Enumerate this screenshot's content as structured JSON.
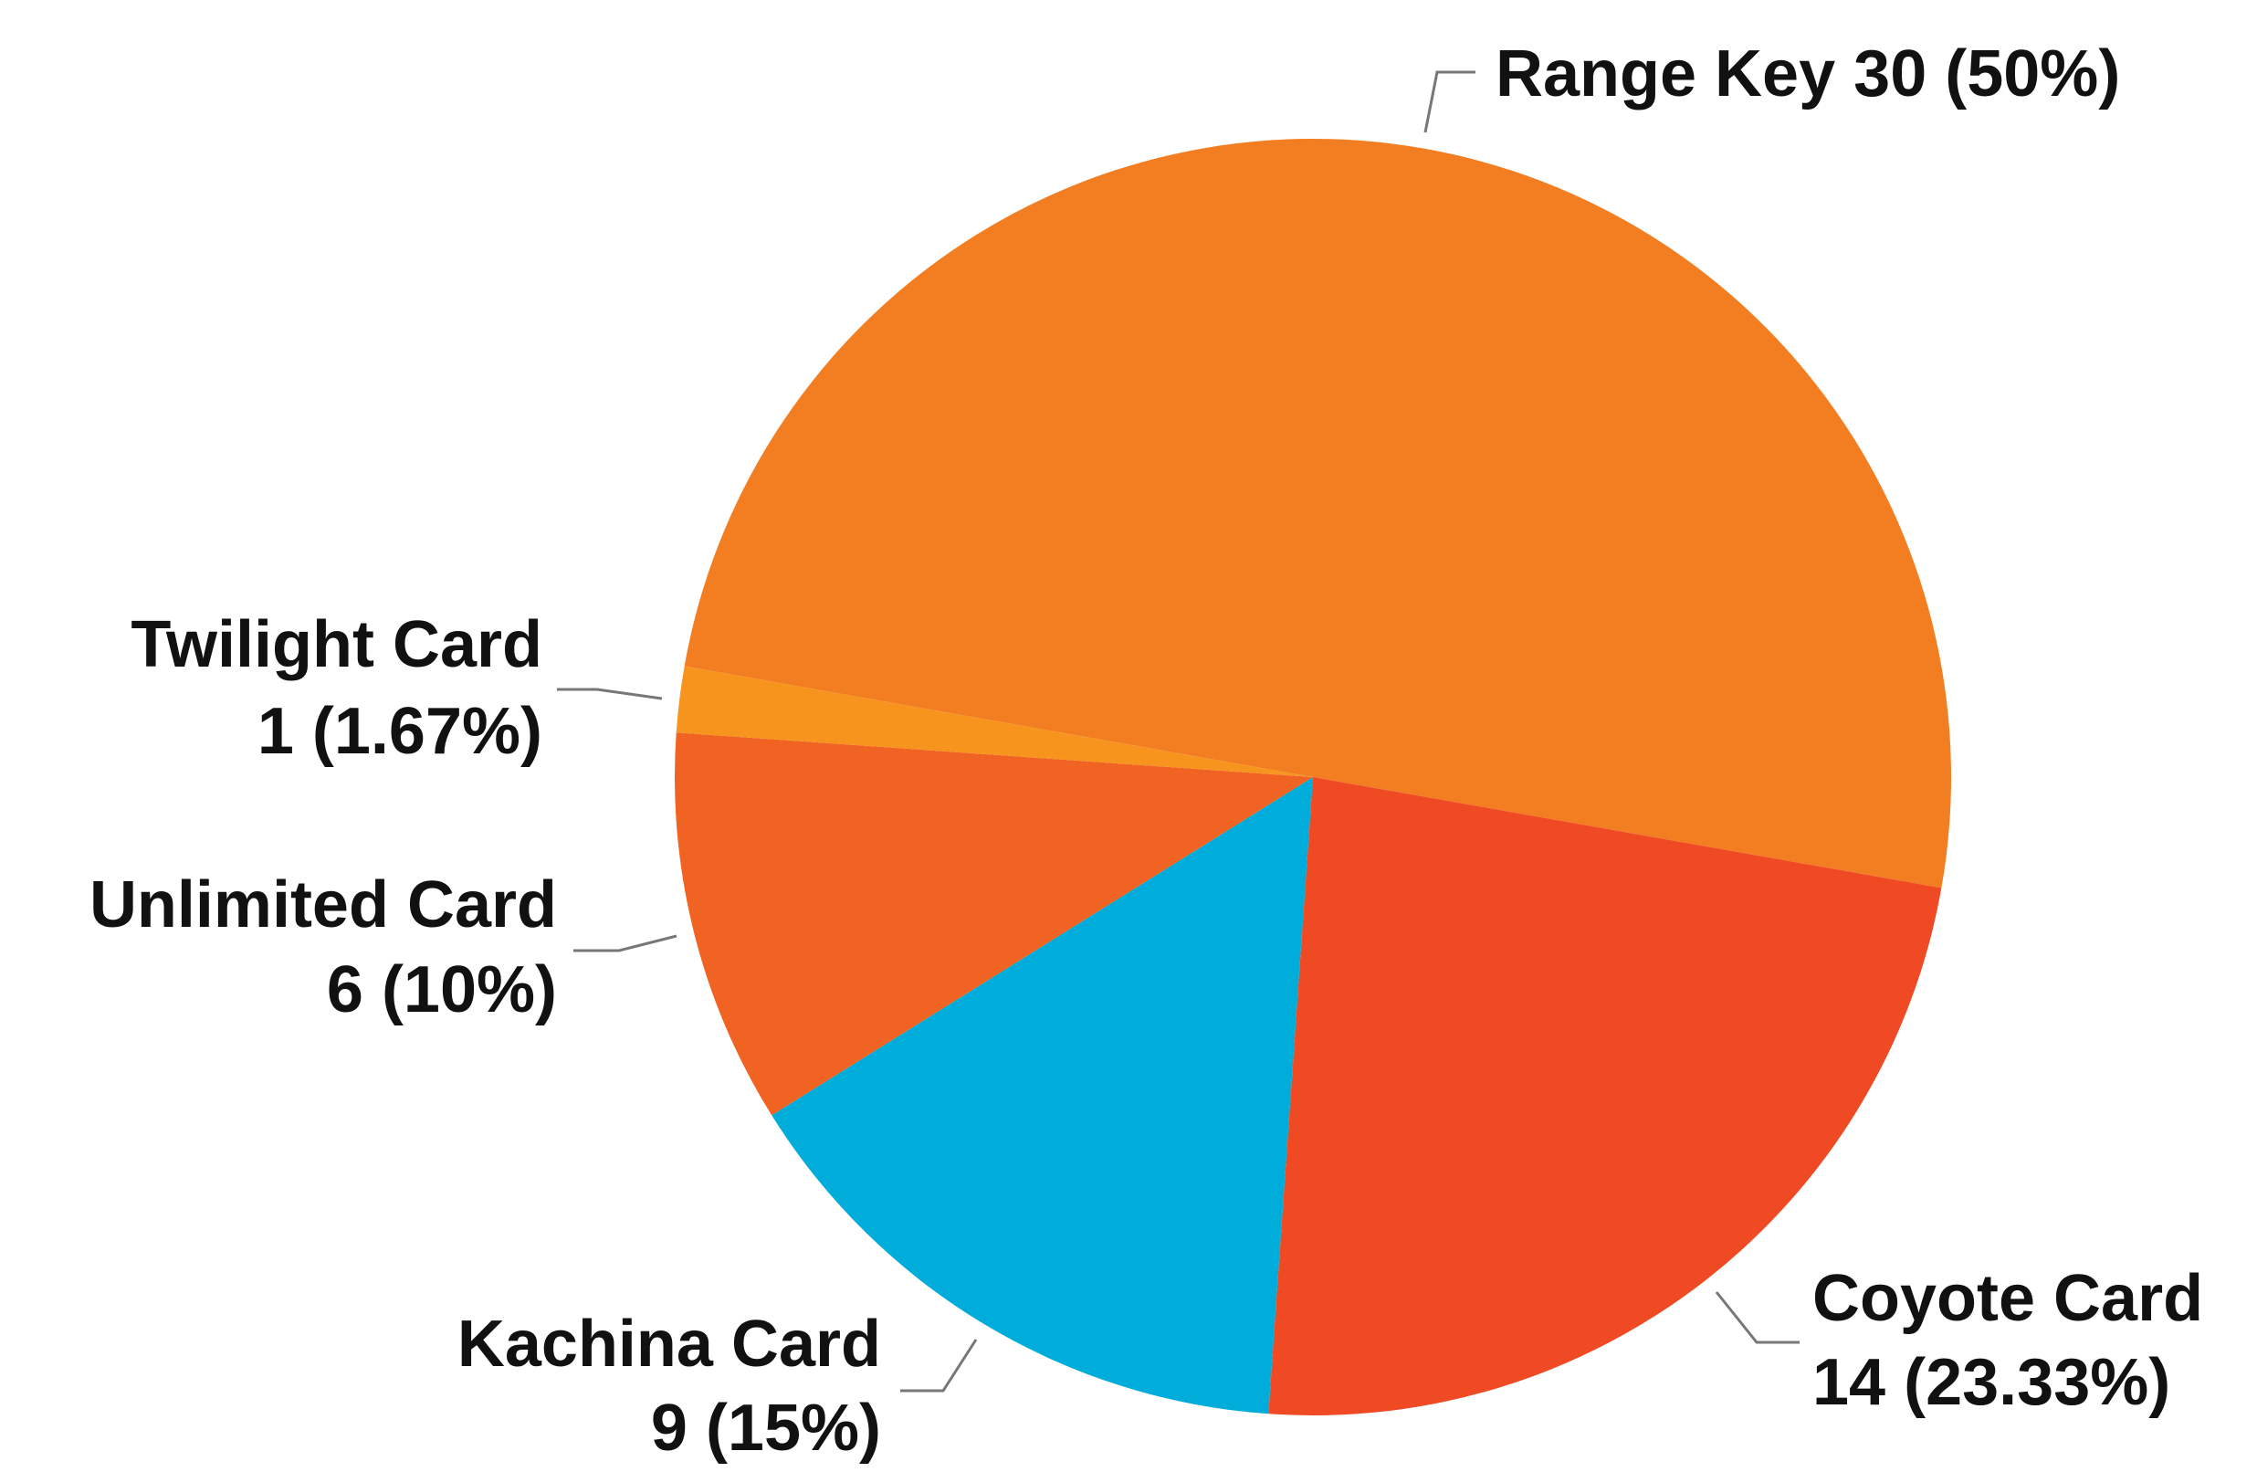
{
  "chart_data": {
    "type": "pie",
    "categories": [
      "Range Key",
      "Coyote Card",
      "Kachina Card",
      "Unlimited Card",
      "Twilight Card"
    ],
    "values": [
      30,
      14,
      9,
      6,
      1
    ],
    "value_labels": [
      "30 (50%)",
      "14 (23.33%)",
      "9 (15%)",
      "6 (10%)",
      "1 (1.67%)"
    ],
    "colors": [
      "#f37e22",
      "#ef4a23",
      "#00acd9",
      "#f16322",
      "#f7941d"
    ]
  }
}
